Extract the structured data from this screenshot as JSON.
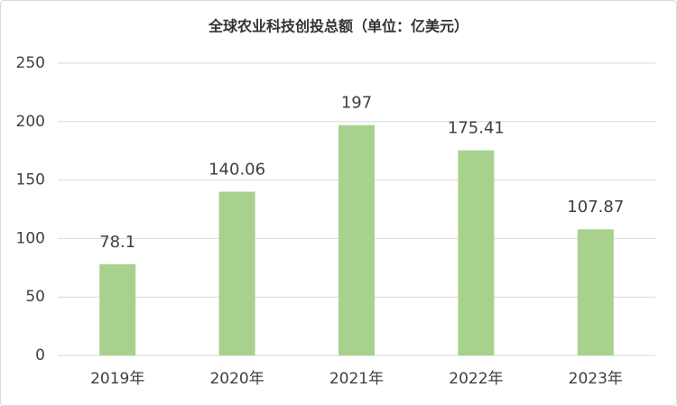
{
  "chart_data": {
    "type": "bar",
    "title": "全球农业科技创投总额（单位：亿美元）",
    "categories": [
      "2019年",
      "2020年",
      "2021年",
      "2022年",
      "2023年"
    ],
    "values": [
      78.1,
      140.06,
      197,
      175.41,
      107.87
    ],
    "color": "#a9d18e",
    "ylim": [
      0,
      250
    ],
    "yticks": [
      0,
      50,
      100,
      150,
      200,
      250
    ],
    "grid": true
  }
}
